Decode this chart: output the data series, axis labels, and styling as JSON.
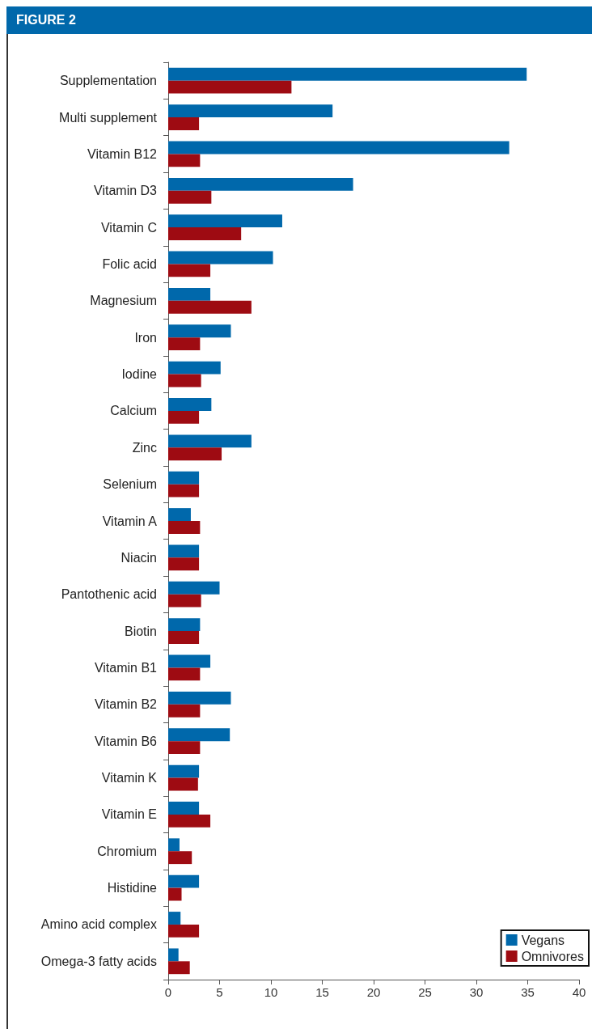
{
  "chart_data": {
    "type": "bar",
    "title": "FIGURE 2",
    "orientation": "horizontal",
    "categories": [
      "Supplementation",
      "Multi supplement",
      "Vitamin B12",
      "Vitamin D3",
      "Vitamin C",
      "Folic acid",
      "Magnesium",
      "Iron",
      "Iodine",
      "Calcium",
      "Zinc",
      "Selenium",
      "Vitamin A",
      "Niacin",
      "Pantothenic acid",
      "Biotin",
      "Vitamin B1",
      "Vitamin B2",
      "Vitamin B6",
      "Vitamin K",
      "Vitamin E",
      "Chromium",
      "Histidine",
      "Amino acid complex",
      "Omega-3 fatty acids"
    ],
    "series": [
      {
        "name": "Vegans",
        "color": "#0068ab",
        "values": [
          34.9,
          16.0,
          33.2,
          18.0,
          11.1,
          10.2,
          4.1,
          6.1,
          5.1,
          4.2,
          8.1,
          3.0,
          2.2,
          3.0,
          5.0,
          3.1,
          4.1,
          6.1,
          6.0,
          3.0,
          3.0,
          1.1,
          3.0,
          1.2,
          1.0
        ]
      },
      {
        "name": "Omnivores",
        "color": "#9e0b12",
        "values": [
          12.0,
          3.0,
          3.1,
          4.2,
          7.1,
          4.1,
          8.1,
          3.1,
          3.2,
          3.0,
          5.2,
          3.0,
          3.1,
          3.0,
          3.2,
          3.0,
          3.1,
          3.1,
          3.1,
          2.9,
          4.1,
          2.3,
          1.3,
          3.0,
          2.1
        ]
      }
    ],
    "xlim": [
      0,
      40
    ],
    "xticks": [
      0,
      5,
      10,
      15,
      20,
      25,
      30,
      35,
      40
    ],
    "grid": false,
    "legend": "bottom right"
  }
}
